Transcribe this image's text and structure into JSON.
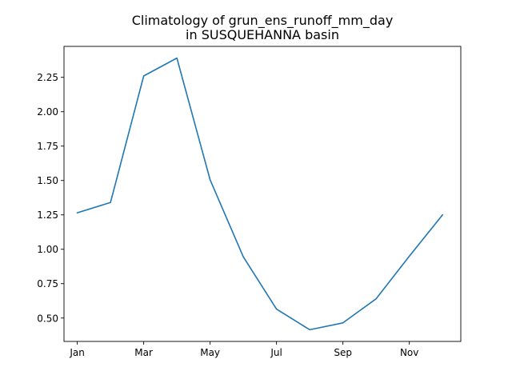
{
  "chart_data": {
    "type": "line",
    "title_lines": [
      "Climatology of grun_ens_runoff_mm_day",
      "in SUSQUEHANNA basin"
    ],
    "xlabel": "",
    "ylabel": "",
    "x": [
      1,
      2,
      3,
      4,
      5,
      6,
      7,
      8,
      9,
      10,
      11,
      12
    ],
    "xlim": [
      0.6,
      12.55
    ],
    "x_ticks": [
      {
        "value": 1,
        "label": "Jan"
      },
      {
        "value": 3,
        "label": "Mar"
      },
      {
        "value": 5,
        "label": "May"
      },
      {
        "value": 7,
        "label": "Jul"
      },
      {
        "value": 9,
        "label": "Sep"
      },
      {
        "value": 11,
        "label": "Nov"
      }
    ],
    "ylim": [
      0.33,
      2.475
    ],
    "y_ticks": [
      {
        "value": 0.5,
        "label": "0.50"
      },
      {
        "value": 0.75,
        "label": "0.75"
      },
      {
        "value": 1.0,
        "label": "1.00"
      },
      {
        "value": 1.25,
        "label": "1.25"
      },
      {
        "value": 1.5,
        "label": "1.50"
      },
      {
        "value": 1.75,
        "label": "1.75"
      },
      {
        "value": 2.0,
        "label": "2.00"
      },
      {
        "value": 2.25,
        "label": "2.25"
      }
    ],
    "grid": false,
    "series": [
      {
        "name": "grun_ens_runoff_mm_day",
        "color": "#1f77b4",
        "values": [
          1.265,
          1.34,
          2.26,
          2.39,
          1.505,
          0.945,
          0.565,
          0.415,
          0.465,
          0.64,
          0.95,
          1.25
        ]
      }
    ]
  }
}
